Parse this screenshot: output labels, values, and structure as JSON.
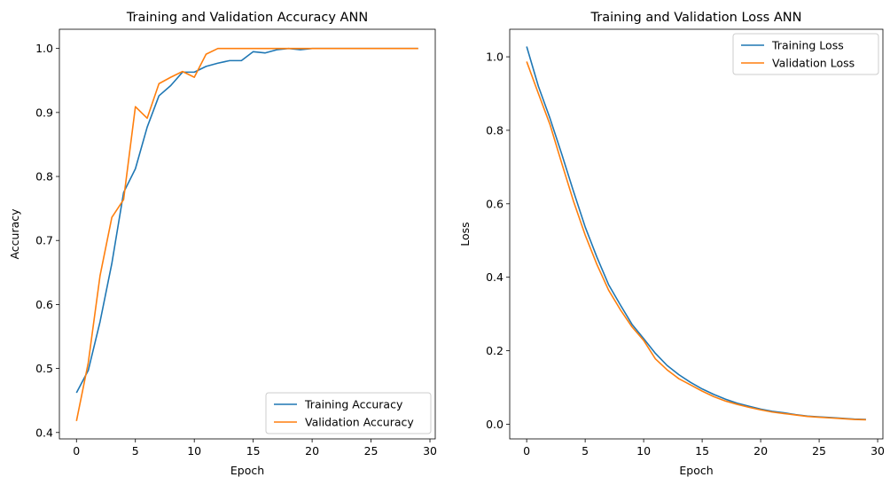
{
  "chart_data": [
    {
      "type": "line",
      "title": "Training and Validation Accuracy ANN",
      "xlabel": "Epoch",
      "ylabel": "Accuracy",
      "xlim": [
        -1.45,
        30.45
      ],
      "ylim": [
        0.39,
        1.03
      ],
      "xticks": [
        0,
        5,
        10,
        15,
        20,
        25,
        30
      ],
      "yticks": [
        0.4,
        0.5,
        0.6,
        0.7,
        0.8,
        0.9,
        1.0
      ],
      "yticks_decimals": 1,
      "grid": false,
      "legend_position": "lower-right",
      "x": [
        0,
        1,
        2,
        3,
        4,
        5,
        6,
        7,
        8,
        9,
        10,
        11,
        12,
        13,
        14,
        15,
        16,
        17,
        18,
        19,
        20,
        21,
        22,
        23,
        24,
        25,
        26,
        27,
        28,
        29
      ],
      "series": [
        {
          "name": "Training Accuracy",
          "color": "#1f77b4",
          "values": [
            0.462,
            0.497,
            0.573,
            0.664,
            0.775,
            0.812,
            0.877,
            0.926,
            0.942,
            0.963,
            0.963,
            0.972,
            0.977,
            0.981,
            0.981,
            0.995,
            0.993,
            0.998,
            1.0,
            0.998,
            1.0,
            1.0,
            1.0,
            1.0,
            1.0,
            1.0,
            1.0,
            1.0,
            1.0,
            1.0
          ]
        },
        {
          "name": "Validation Accuracy",
          "color": "#ff7f0e",
          "values": [
            0.418,
            0.509,
            0.645,
            0.736,
            0.764,
            0.909,
            0.891,
            0.945,
            0.955,
            0.964,
            0.955,
            0.991,
            1.0,
            1.0,
            1.0,
            1.0,
            1.0,
            1.0,
            1.0,
            1.0,
            1.0,
            1.0,
            1.0,
            1.0,
            1.0,
            1.0,
            1.0,
            1.0,
            1.0,
            1.0
          ]
        }
      ]
    },
    {
      "type": "line",
      "title": "Training and Validation Loss ANN",
      "xlabel": "Epoch",
      "ylabel": "Loss",
      "xlim": [
        -1.45,
        30.45
      ],
      "ylim": [
        -0.04,
        1.075
      ],
      "xticks": [
        0,
        5,
        10,
        15,
        20,
        25,
        30
      ],
      "yticks": [
        0.0,
        0.2,
        0.4,
        0.6,
        0.8,
        1.0
      ],
      "yticks_decimals": 1,
      "grid": false,
      "legend_position": "upper-right",
      "x": [
        0,
        1,
        2,
        3,
        4,
        5,
        6,
        7,
        8,
        9,
        10,
        11,
        12,
        13,
        14,
        15,
        16,
        17,
        18,
        19,
        20,
        21,
        22,
        23,
        24,
        25,
        26,
        27,
        28,
        29
      ],
      "series": [
        {
          "name": "Training Loss",
          "color": "#1f77b4",
          "values": [
            1.028,
            0.92,
            0.832,
            0.735,
            0.634,
            0.537,
            0.455,
            0.38,
            0.325,
            0.272,
            0.233,
            0.193,
            0.16,
            0.135,
            0.114,
            0.096,
            0.081,
            0.068,
            0.057,
            0.049,
            0.041,
            0.035,
            0.031,
            0.026,
            0.022,
            0.02,
            0.018,
            0.016,
            0.014,
            0.013
          ]
        },
        {
          "name": "Validation Loss",
          "color": "#ff7f0e",
          "values": [
            0.987,
            0.9,
            0.815,
            0.71,
            0.607,
            0.515,
            0.435,
            0.365,
            0.312,
            0.265,
            0.228,
            0.178,
            0.148,
            0.124,
            0.107,
            0.09,
            0.075,
            0.063,
            0.054,
            0.046,
            0.039,
            0.033,
            0.029,
            0.025,
            0.021,
            0.019,
            0.017,
            0.015,
            0.013,
            0.012
          ]
        }
      ]
    }
  ]
}
